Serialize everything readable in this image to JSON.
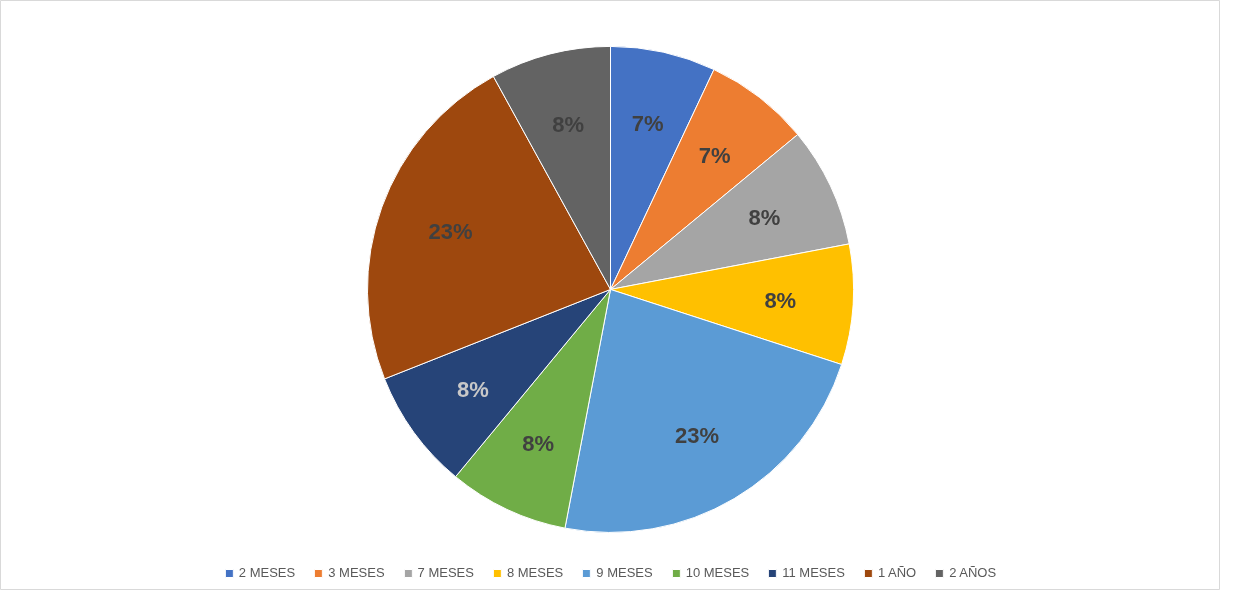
{
  "chart_data": {
    "type": "pie",
    "categories": [
      "2 MESES",
      "3 MESES",
      "7 MESES",
      "8 MESES",
      "9 MESES",
      "10 MESES",
      "11 MESES",
      "1 AÑO",
      "2 AÑOS"
    ],
    "values": [
      7,
      7,
      8,
      8,
      23,
      8,
      8,
      23,
      8
    ],
    "colors": [
      "#4472c4",
      "#ed7d31",
      "#a5a5a5",
      "#ffc000",
      "#5b9bd5",
      "#70ad47",
      "#264478",
      "#9e480e",
      "#636363"
    ],
    "value_labels": [
      "7%",
      "7%",
      "8%",
      "8%",
      "23%",
      "8%",
      "8%",
      "23%",
      "8%"
    ],
    "legend": "bottom"
  }
}
